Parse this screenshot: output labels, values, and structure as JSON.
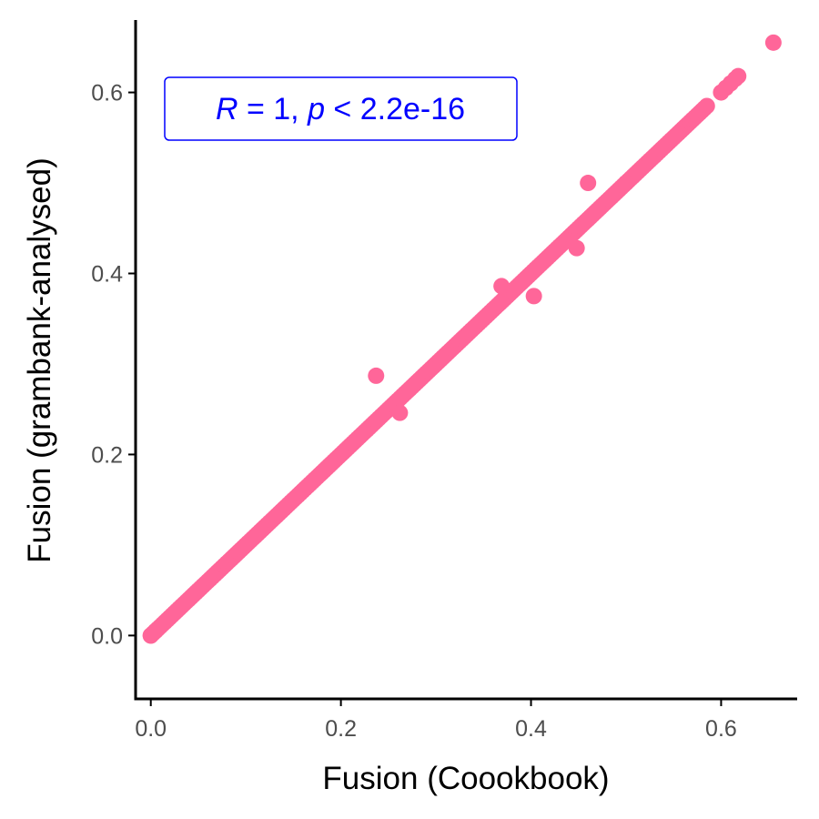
{
  "chart_data": {
    "type": "scatter",
    "xlabel": "Fusion (Coookbook)",
    "ylabel": "Fusion (grambank-analysed)",
    "xlim": [
      -0.016,
      0.68
    ],
    "ylim": [
      -0.07,
      0.68
    ],
    "xticks": [
      0.0,
      0.2,
      0.4,
      0.6
    ],
    "yticks": [
      0.0,
      0.2,
      0.4,
      0.6
    ],
    "xtick_labels": [
      "0.0",
      "0.2",
      "0.4",
      "0.6"
    ],
    "ytick_labels": [
      "0.0",
      "0.2",
      "0.4",
      "0.6"
    ],
    "grid": false,
    "point_color": "#ff6699",
    "annotation": {
      "R_symbol": "R",
      "R_rest": " = 1, ",
      "p_symbol": "p",
      "p_rest": " < 2.2e-16",
      "color": "#0000ff",
      "position": "top-left"
    },
    "diagonal_band": {
      "x_range": [
        0.0,
        0.585
      ],
      "step": 0.0025
    },
    "points": [
      [
        0.0,
        0.0
      ],
      [
        0.005,
        0.005
      ],
      [
        0.237,
        0.287
      ],
      [
        0.262,
        0.246
      ],
      [
        0.369,
        0.386
      ],
      [
        0.403,
        0.375
      ],
      [
        0.448,
        0.428
      ],
      [
        0.46,
        0.5
      ],
      [
        0.5,
        0.5
      ],
      [
        0.6,
        0.6
      ],
      [
        0.605,
        0.605
      ],
      [
        0.61,
        0.61
      ],
      [
        0.615,
        0.615
      ],
      [
        0.618,
        0.618
      ],
      [
        0.655,
        0.655
      ]
    ]
  }
}
